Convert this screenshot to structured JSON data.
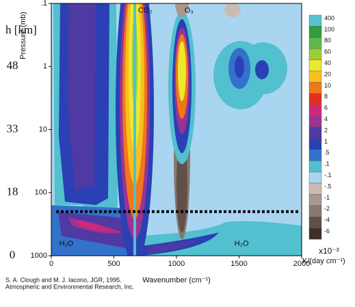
{
  "chart_data": {
    "type": "contour",
    "ylabel": "Pressure (mb)",
    "xlabel": "Wavenumber (cm⁻¹)",
    "left_axis_title": "h [km]",
    "xlim": [
      0,
      2000
    ],
    "xticks": [
      0,
      500,
      1000,
      1500,
      2000
    ],
    "ylim": [
      0.1,
      1000
    ],
    "y_log_scale": true,
    "y_inverted": true,
    "yticks": [
      {
        "value": 0.1,
        "label": ".1"
      },
      1,
      10,
      100,
      1000
    ],
    "h_ticks": [
      {
        "value": 1,
        "label": "48"
      },
      {
        "value": 10,
        "label": "33"
      },
      {
        "value": 100,
        "label": "18"
      },
      {
        "value": 1000,
        "label": "0"
      }
    ],
    "tropopause_line": 200,
    "annotations": [
      {
        "text": "CO₂",
        "x": 750,
        "y": 0.13
      },
      {
        "text": "O₃",
        "x": 1100,
        "y": 0.13
      },
      {
        "text": "H₂O",
        "x": 120,
        "y": 650
      },
      {
        "text": "H₂O",
        "x": 1520,
        "y": 650
      }
    ],
    "colorbar": {
      "levels": [
        400,
        100,
        80,
        60,
        40,
        20,
        10,
        8,
        6,
        4,
        2,
        1,
        {
          "value": 0.5,
          "label": ".5"
        },
        {
          "value": 0.1,
          "label": ".1"
        },
        {
          "value": -0.1,
          "label": "-.1"
        },
        {
          "value": -0.5,
          "label": "-.5"
        },
        -1,
        -2,
        -4,
        -6
      ],
      "colors": [
        "#56c3cf",
        "#2f9e3c",
        "#5cb848",
        "#9ccd3c",
        "#ece82e",
        "#f8bf20",
        "#f07818",
        "#e2301f",
        "#d02878",
        "#9c3294",
        "#4e3aa2",
        "#2a40b4",
        "#3272cb",
        "#52c0cf",
        "#a9d5f1",
        "#cbbab1",
        "#a99890",
        "#887870",
        "#605047",
        "#3f2f27"
      ],
      "scale_label": "x10⁻³",
      "unit_label": "K/(day cm⁻¹)"
    },
    "credit": [
      "S. A. Clough and M. J. Iacono, JGR, 1995.",
      "Atmospheric and Environmental Research, Inc."
    ]
  }
}
